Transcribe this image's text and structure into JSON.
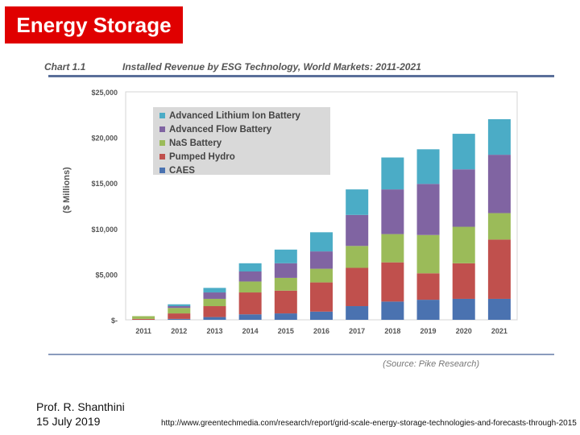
{
  "slide": {
    "title": "Energy Storage",
    "author": "Prof. R. Shanthini",
    "date": "15 July 2019",
    "source_url": "http://www.greentechmedia.com/research/report/grid-scale-energy-storage-technologies-and-forecasts-through-2015"
  },
  "chart_data": {
    "type": "bar",
    "stacked": true,
    "chart_label": "Chart 1.1",
    "title": "Installed Revenue by ESG Technology, World Markets:  2011-2021",
    "source": "(Source: Pike Research)",
    "ylabel": "($ Millions)",
    "xlabel": "",
    "ylim": [
      0,
      25000
    ],
    "yticks": [
      0,
      5000,
      10000,
      15000,
      20000,
      25000
    ],
    "ytick_labels": [
      "$-",
      "$5,000",
      "$10,000",
      "$15,000",
      "$20,000",
      "$25,000"
    ],
    "grid": false,
    "legend_position": "top-left",
    "categories": [
      "2011",
      "2012",
      "2013",
      "2014",
      "2015",
      "2016",
      "2017",
      "2018",
      "2019",
      "2020",
      "2021"
    ],
    "series": [
      {
        "name": "CAES",
        "color": "#4a72b0",
        "values": [
          0,
          100,
          300,
          600,
          700,
          900,
          1500,
          2000,
          2200,
          2300,
          2300
        ]
      },
      {
        "name": "Pumped Hydro",
        "color": "#c0504d",
        "values": [
          100,
          600,
          1200,
          2400,
          2500,
          3200,
          4200,
          4300,
          2900,
          3900,
          6500
        ]
      },
      {
        "name": "NaS Battery",
        "color": "#9bbb59",
        "values": [
          300,
          600,
          800,
          1200,
          1400,
          1500,
          2400,
          3100,
          4200,
          4000,
          2900
        ]
      },
      {
        "name": "Advanced Flow Battery",
        "color": "#8064a2",
        "values": [
          0,
          200,
          700,
          1100,
          1600,
          1900,
          3400,
          4900,
          5600,
          6300,
          6400
        ]
      },
      {
        "name": "Advanced Lithium Ion Battery",
        "color": "#4bacc6",
        "values": [
          0,
          200,
          500,
          900,
          1500,
          2100,
          2800,
          3500,
          3800,
          3900,
          3900
        ]
      }
    ],
    "legend_order": [
      "Advanced Lithium Ion Battery",
      "Advanced Flow Battery",
      "NaS Battery",
      "Pumped Hydro",
      "CAES"
    ]
  }
}
